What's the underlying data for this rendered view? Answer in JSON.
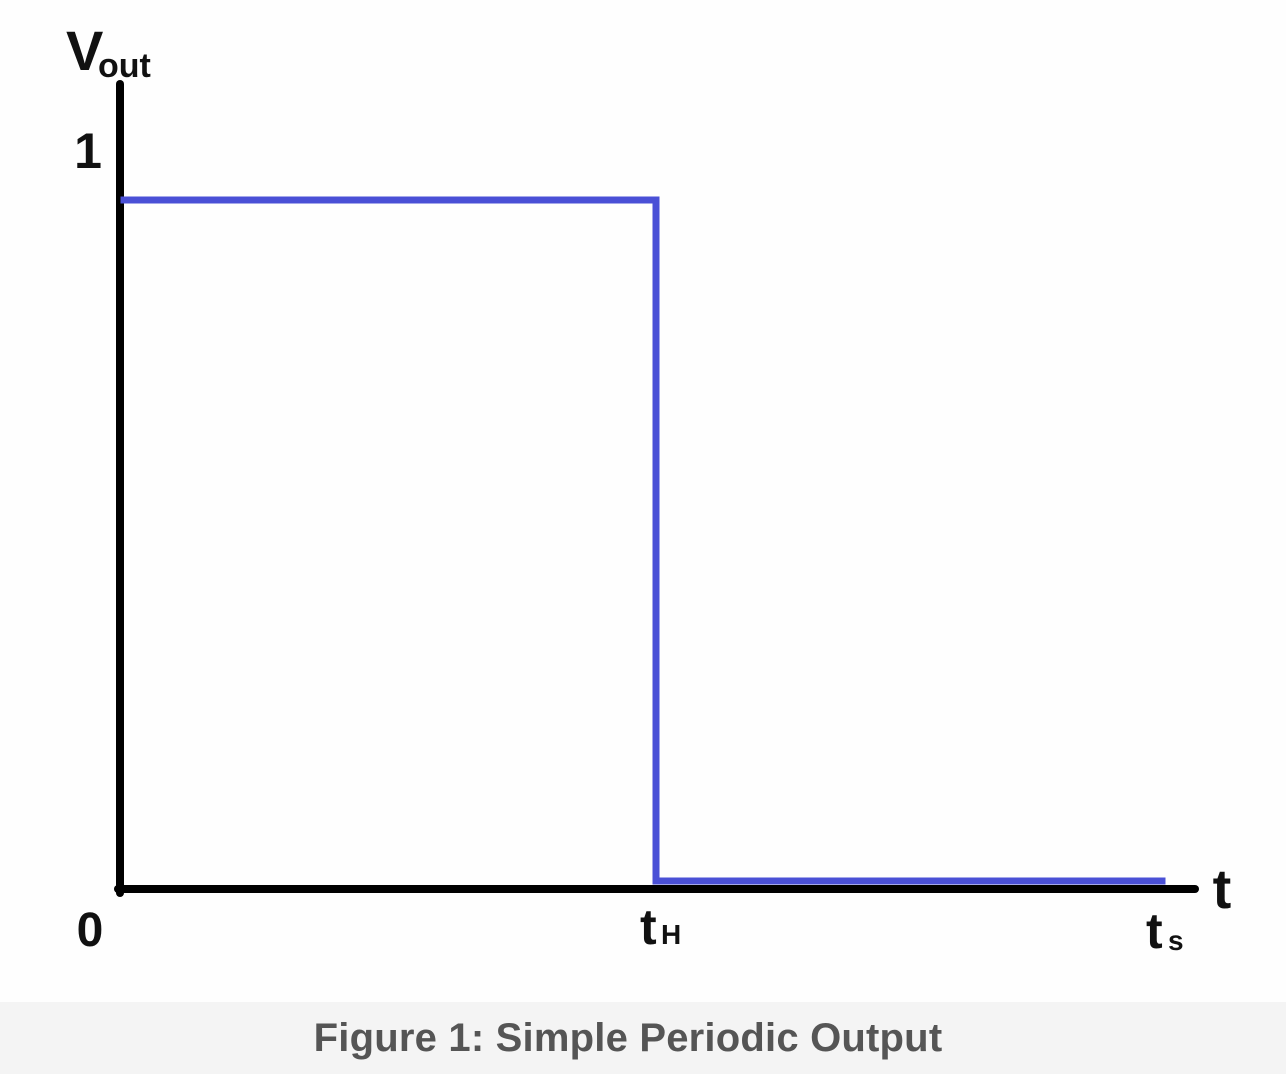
{
  "chart_data": {
    "type": "line",
    "title": "",
    "ylabel": "V",
    "ylabel_sub": "out",
    "xlabel": "t",
    "origin_label": "0",
    "y_ticks": [
      {
        "value": 1,
        "label": "1"
      }
    ],
    "x_ticks": [
      {
        "key": "tH",
        "label": "t",
        "sub": "H"
      },
      {
        "key": "ts",
        "label": "t",
        "sub": "s"
      }
    ],
    "series": [
      {
        "color": "#4a50d6",
        "points": [
          {
            "x": "0",
            "y": 1
          },
          {
            "x": "tH",
            "y": 1
          },
          {
            "x": "tH",
            "y": 0
          },
          {
            "x": "ts",
            "y": 0
          }
        ]
      }
    ],
    "axis_color": "#000000",
    "grid": false
  },
  "caption": "Figure 1: Simple Periodic Output"
}
